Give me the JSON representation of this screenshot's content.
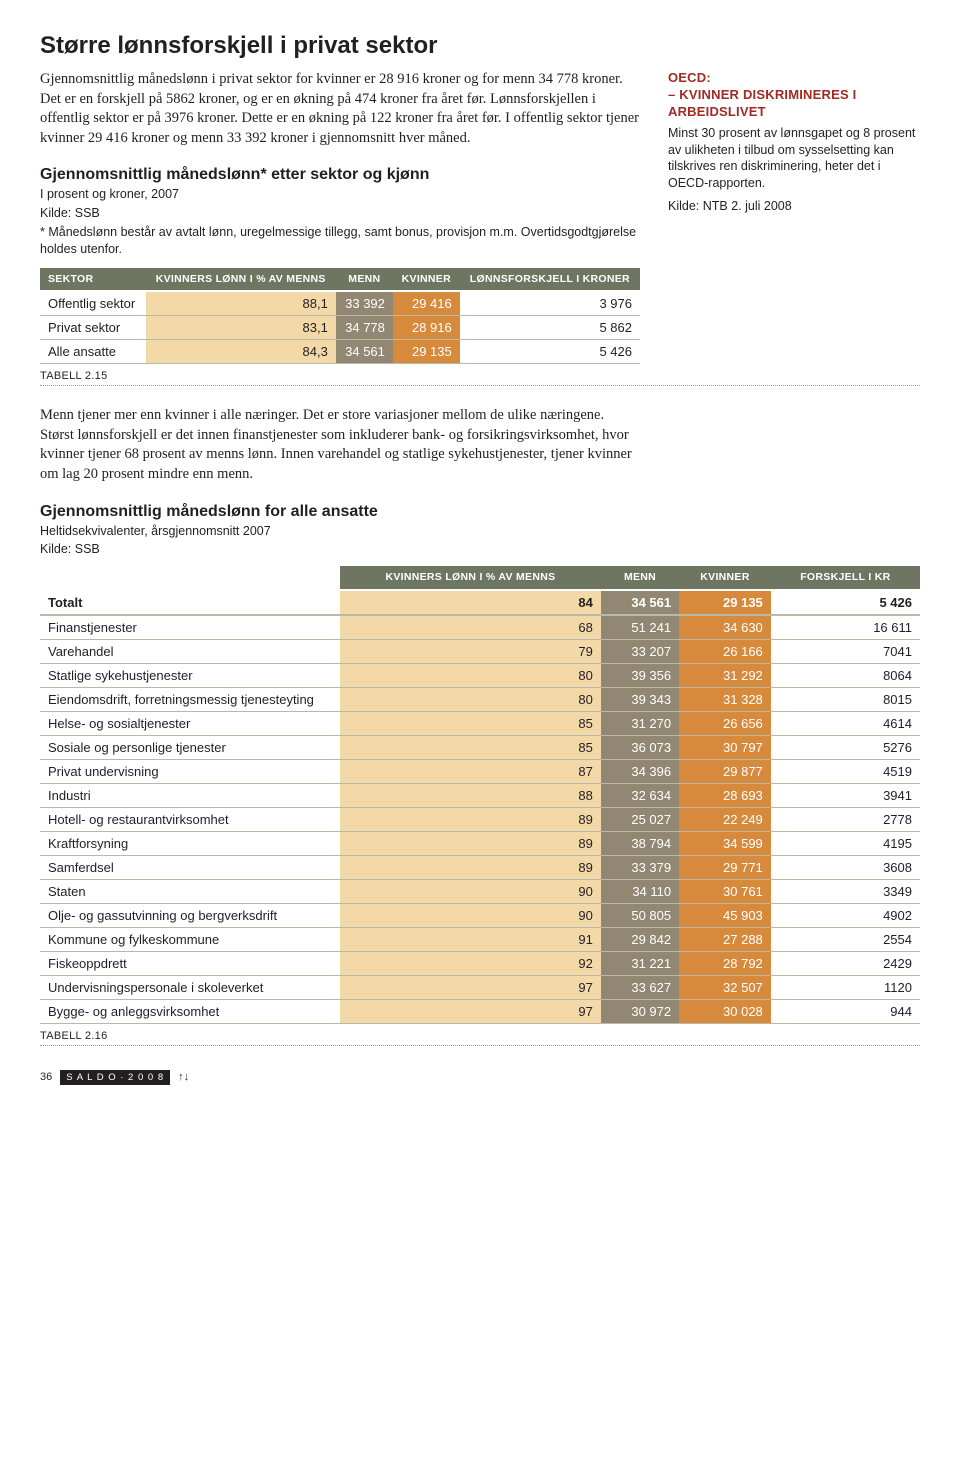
{
  "title": "Større lønnsforskjell i privat sektor",
  "intro_para": "Gjennomsnittlig månedslønn i privat sektor for kvinner er 28 916 kroner og for menn 34 778 kroner. Det er en forskjell på 5862 kroner, og er en økning på 474 kroner fra året før. Lønnsforskjellen i offentlig sektor er på 3976 kroner. Dette er en økning på 122 kroner fra året før. I offentlig sektor tjener kvinner 29 416 kroner og menn 33 392 kroner i gjennomsnitt hver måned.",
  "sidebar": {
    "heading_l1": "OECD:",
    "heading_l2": "– KVINNER DISKRIMINERES I ARBEIDSLIVET",
    "body": "Minst 30 prosent av lønnsgapet og 8 prosent av ulikheten i tilbud om sysselsetting kan tilskrives ren diskriminering, heter det i OECD-rapporten.",
    "source": "Kilde: NTB 2. juli 2008"
  },
  "colors": {
    "header_bg": "#6e7661",
    "pct_bg": "#f3d8a8",
    "menn_bg": "#928772",
    "kvinner_bg": "#d78a3c",
    "row_border": "#b9b9a8"
  },
  "table1": {
    "title": "Gjennomsnittlig månedslønn* etter sektor og kjønn",
    "sub1": "I prosent og kroner, 2007",
    "sub2": "Kilde: SSB",
    "sub3": "* Månedslønn består av avtalt lønn, uregelmessige tillegg, samt bonus, provisjon m.m. Overtidsgodtgjørelse holdes utenfor.",
    "caption": "TABELL 2.15",
    "columns": [
      "SEKTOR",
      "KVINNERS LØNN I % AV MENNS",
      "MENN",
      "KVINNER",
      "LØNNSFORSKJELL I KRONER"
    ],
    "rows": [
      {
        "label": "Offentlig sektor",
        "pct": "88,1",
        "menn": "33 392",
        "kvinner": "29 416",
        "diff": "3 976"
      },
      {
        "label": "Privat sektor",
        "pct": "83,1",
        "menn": "34 778",
        "kvinner": "28 916",
        "diff": "5 862"
      },
      {
        "label": "Alle ansatte",
        "pct": "84,3",
        "menn": "34 561",
        "kvinner": "29 135",
        "diff": "5 426"
      }
    ]
  },
  "mid_para": "Menn tjener mer enn kvinner i alle næringer. Det er store variasjoner mellom de ulike næringene. Størst lønnsforskjell er det innen finanstjenester som inkluderer bank- og forsikringsvirksomhet, hvor kvinner tjener 68 prosent av menns lønn. Innen varehandel og statlige sykehustjenester, tjener kvinner om lag 20 prosent mindre enn menn.",
  "table2": {
    "title": "Gjennomsnittlig månedslønn for alle ansatte",
    "sub1": "Heltidsekvivalenter, årsgjennomsnitt 2007",
    "sub2": "Kilde: SSB",
    "caption": "TABELL 2.16",
    "columns": [
      "",
      "KVINNERS LØNN I % AV MENNS",
      "MENN",
      "KVINNER",
      "FORSKJELL I KR"
    ],
    "first_row": {
      "label": "Totalt",
      "pct": "84",
      "menn": "34 561",
      "kvinner": "29 135",
      "diff": "5 426"
    },
    "rows": [
      {
        "label": "Finanstjenester",
        "pct": "68",
        "menn": "51 241",
        "kvinner": "34 630",
        "diff": "16 611"
      },
      {
        "label": "Varehandel",
        "pct": "79",
        "menn": "33 207",
        "kvinner": "26 166",
        "diff": "7041"
      },
      {
        "label": "Statlige sykehustjenester",
        "pct": "80",
        "menn": "39 356",
        "kvinner": "31 292",
        "diff": "8064"
      },
      {
        "label": "Eiendomsdrift, forretningsmessig tjenesteyting",
        "pct": "80",
        "menn": "39 343",
        "kvinner": "31 328",
        "diff": "8015"
      },
      {
        "label": "Helse- og sosialtjenester",
        "pct": "85",
        "menn": "31 270",
        "kvinner": "26 656",
        "diff": "4614"
      },
      {
        "label": "Sosiale og personlige tjenester",
        "pct": "85",
        "menn": "36 073",
        "kvinner": "30 797",
        "diff": "5276"
      },
      {
        "label": "Privat undervisning",
        "pct": "87",
        "menn": "34 396",
        "kvinner": "29 877",
        "diff": "4519"
      },
      {
        "label": "Industri",
        "pct": "88",
        "menn": "32 634",
        "kvinner": "28 693",
        "diff": "3941"
      },
      {
        "label": "Hotell- og restaurantvirksomhet",
        "pct": "89",
        "menn": "25 027",
        "kvinner": "22 249",
        "diff": "2778"
      },
      {
        "label": "Kraftforsyning",
        "pct": "89",
        "menn": "38 794",
        "kvinner": "34 599",
        "diff": "4195"
      },
      {
        "label": "Samferdsel",
        "pct": "89",
        "menn": "33 379",
        "kvinner": "29 771",
        "diff": "3608"
      },
      {
        "label": "Staten",
        "pct": "90",
        "menn": "34 110",
        "kvinner": "30 761",
        "diff": "3349"
      },
      {
        "label": "Olje- og gassutvinning og bergverksdrift",
        "pct": "90",
        "menn": "50 805",
        "kvinner": "45 903",
        "diff": "4902"
      },
      {
        "label": "Kommune og fylkeskommune",
        "pct": "91",
        "menn": "29 842",
        "kvinner": "27 288",
        "diff": "2554"
      },
      {
        "label": "Fiskeoppdrett",
        "pct": "92",
        "menn": "31 221",
        "kvinner": "28 792",
        "diff": "2429"
      },
      {
        "label": "Undervisningspersonale i skoleverket",
        "pct": "97",
        "menn": "33 627",
        "kvinner": "32 507",
        "diff": "1120"
      },
      {
        "label": "Bygge- og anleggsvirksomhet",
        "pct": "97",
        "menn": "30 972",
        "kvinner": "30 028",
        "diff": "944"
      }
    ]
  },
  "footer": {
    "pagenum": "36",
    "badge": "S A L D O · 2 0 0 8",
    "glyph": "↑↓"
  }
}
